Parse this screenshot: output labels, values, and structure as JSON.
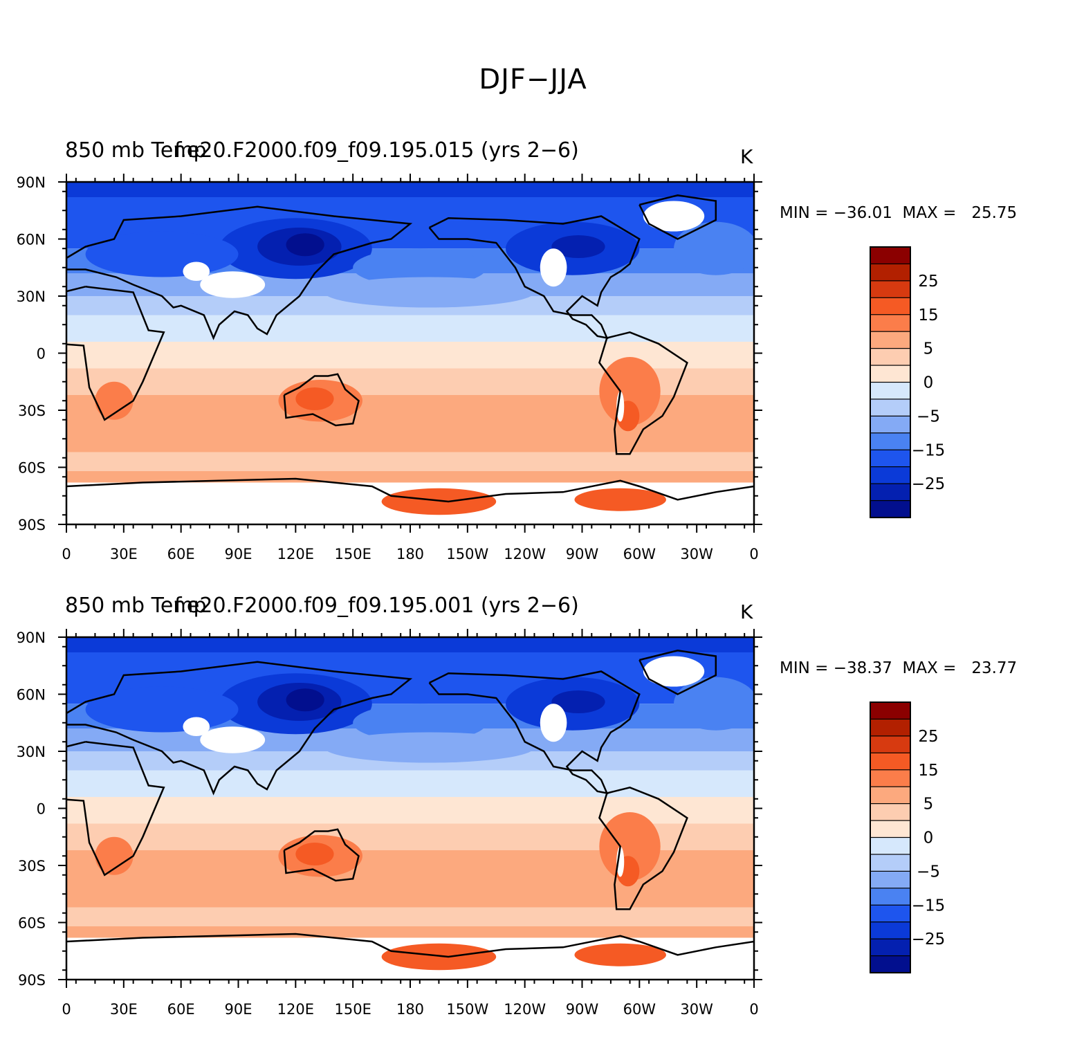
{
  "figure": {
    "title": "DJF−JJA"
  },
  "panels": [
    {
      "left_title": "850 mb Temp",
      "center_title": "f.e20.F2000.f09_f09.195.015 (yrs 2−6)",
      "units": "K",
      "min_label": "MIN = −36.01",
      "max_label": "MAX =   25.75"
    },
    {
      "left_title": "850 mb Temp",
      "center_title": "f.e20.F2000.f09_f09.195.001 (yrs 2−6)",
      "units": "K",
      "min_label": "MIN = −38.37",
      "max_label": "MAX =   23.77"
    }
  ],
  "axes": {
    "lat_labels": [
      "90N",
      "60N",
      "30N",
      "0",
      "30S",
      "60S",
      "90S"
    ],
    "lon_labels": [
      "0",
      "30E",
      "60E",
      "90E",
      "120E",
      "150E",
      "180",
      "150W",
      "120W",
      "90W",
      "60W",
      "30W",
      "0"
    ]
  },
  "colorbar": {
    "colors": [
      "#8b0000",
      "#b22000",
      "#d73a10",
      "#f55a24",
      "#fb7d4a",
      "#fca97e",
      "#fdcdb1",
      "#fee6d3",
      "#d6e8fc",
      "#b4cdf9",
      "#84aaf5",
      "#4a82f2",
      "#1e55ee",
      "#0b3ad8",
      "#0420b0",
      "#020f8e"
    ],
    "labels": [
      "25",
      "15",
      "5",
      "0",
      "−5",
      "−15",
      "−25"
    ]
  },
  "chart_data": {
    "type": "heatmap",
    "title": "DJF−JJA",
    "variable": "850 mb Temp",
    "units": "K",
    "contour_levels": [
      -35,
      -30,
      -25,
      -20,
      -15,
      -10,
      -5,
      -2.5,
      0,
      2.5,
      5,
      10,
      15,
      20,
      25,
      30,
      35
    ],
    "colorbar_tick_labels": [
      "25",
      "15",
      "5",
      "0",
      "−5",
      "−15",
      "−25"
    ],
    "lat_range": [
      -90,
      90
    ],
    "lon_range": [
      0,
      360
    ],
    "maps": [
      {
        "case": "f.e20.F2000.f09_f09.195.015 (yrs 2−6)",
        "min": -36.01,
        "max": 25.75
      },
      {
        "case": "f.e20.F2000.f09_f09.195.001 (yrs 2−6)",
        "min": -38.37,
        "max": 23.77
      }
    ]
  }
}
